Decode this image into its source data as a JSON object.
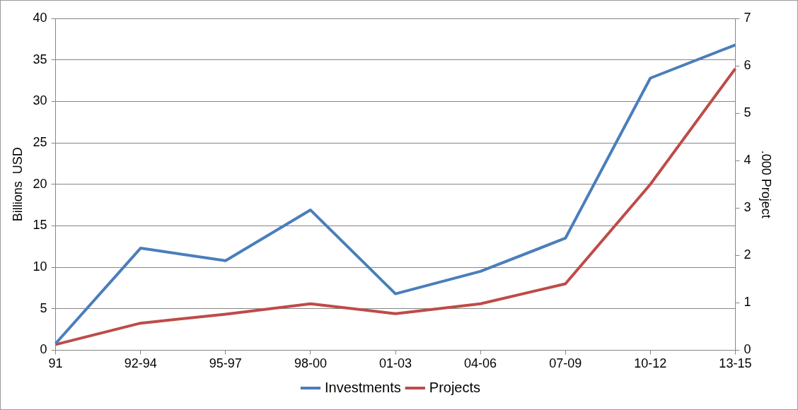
{
  "chart_data": {
    "type": "line",
    "categories": [
      "91",
      "92-94",
      "95-97",
      "98-00",
      "01-03",
      "04-06",
      "07-09",
      "10-12",
      "13-15"
    ],
    "ylabel": "Billions  USD",
    "y2label": ".000 Project",
    "ylim": [
      0,
      40
    ],
    "yticks": [
      0,
      5,
      10,
      15,
      20,
      25,
      30,
      35,
      40
    ],
    "y2lim": [
      0,
      7
    ],
    "y2ticks": [
      0,
      1,
      2,
      3,
      4,
      5,
      6,
      7
    ],
    "grid": "y",
    "legend": "bottom",
    "marker": "none",
    "series": [
      {
        "name": "Investments",
        "color": "#4a7ebb",
        "values": [
          0.8,
          12.3,
          10.8,
          16.9,
          6.8,
          9.5,
          13.5,
          32.8,
          36.8
        ]
      },
      {
        "name": "Projects",
        "color": "#be4b48",
        "axis": "y2",
        "values": [
          0.12,
          0.57,
          0.76,
          0.98,
          0.77,
          0.98,
          1.4,
          3.5,
          5.94
        ]
      }
    ]
  }
}
